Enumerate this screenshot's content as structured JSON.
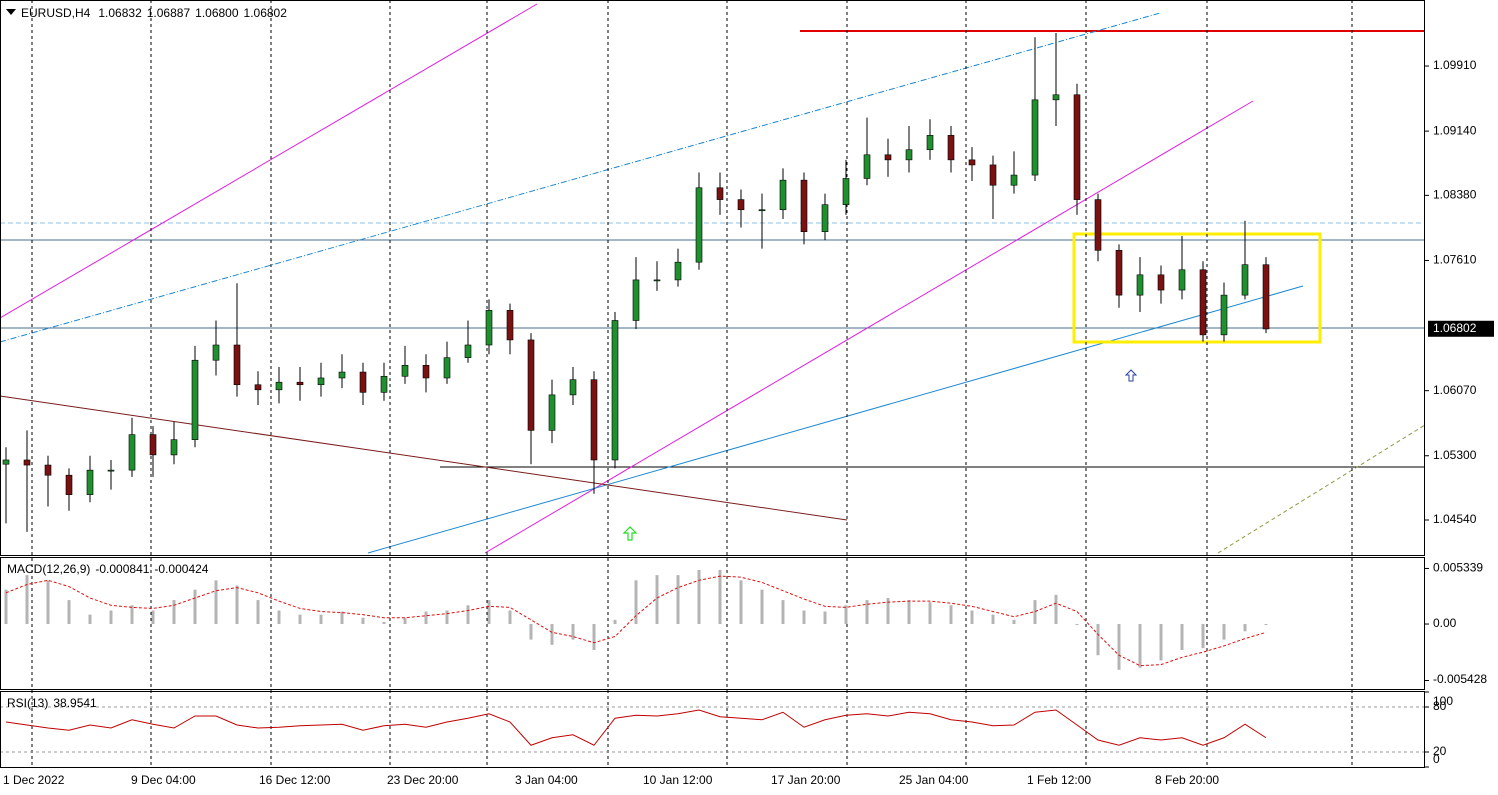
{
  "header": {
    "symbol": "EURUSD,H4",
    "quote": [
      "1.06832",
      "1.06887",
      "1.06800",
      "1.06802"
    ]
  },
  "chart_data": [
    {
      "type": "candlestick",
      "up_color": "#1f8f2f",
      "down_color": "#7a1212",
      "ylim": [
        1.04126,
        1.10691
      ],
      "yticks": [
        {
          "value": 1.0991,
          "label": "1.09910"
        },
        {
          "value": 1.0914,
          "label": "1.09140"
        },
        {
          "value": 1.0838,
          "label": "1.08380"
        },
        {
          "value": 1.0761,
          "label": "1.07610"
        },
        {
          "value": 1.0607,
          "label": "1.06070"
        },
        {
          "value": 1.053,
          "label": "1.05300"
        },
        {
          "value": 1.0454,
          "label": "1.04540"
        }
      ],
      "last_price": 1.06802,
      "time_labels": [
        "1 Dec 2022",
        "9 Dec 04:00",
        "16 Dec 12:00",
        "23 Dec 20:00",
        "3 Jan 04:00",
        "10 Jan 12:00",
        "17 Jan 20:00",
        "25 Jan 04:00",
        "1 Feb 12:00",
        "8 Feb 20:00"
      ],
      "open": [
        1.052,
        1.0525,
        1.0519,
        1.0507,
        1.0484,
        1.0513,
        1.0513,
        1.0555,
        1.0531,
        1.0549,
        1.0643,
        1.0661,
        1.0614,
        1.0608,
        1.0617,
        1.0614,
        1.0622,
        1.0629,
        1.0605,
        1.0624,
        1.0637,
        1.0622,
        1.0646,
        1.0661,
        1.0702,
        1.0667,
        1.056,
        1.0602,
        1.062,
        1.0525,
        1.069,
        1.0738,
        1.0738,
        1.0759,
        1.0847,
        1.0833,
        1.0821,
        1.0821,
        1.0856,
        1.0795,
        1.0827,
        1.0858,
        1.0886,
        1.088,
        1.0892,
        1.0909,
        1.088,
        1.0874,
        1.085,
        1.0862,
        1.0951,
        1.0957,
        1.0833,
        1.0773,
        1.072,
        1.0744,
        1.0726,
        1.075,
        1.0673,
        1.072,
        1.0756
      ],
      "high": [
        1.054,
        1.056,
        1.053,
        1.0515,
        1.053,
        1.0525,
        1.0575,
        1.0565,
        1.057,
        1.066,
        1.069,
        1.0734,
        1.063,
        1.0635,
        1.0635,
        1.064,
        1.065,
        1.064,
        1.064,
        1.066,
        1.065,
        1.0665,
        1.069,
        1.0715,
        1.071,
        1.0675,
        1.062,
        1.0635,
        1.063,
        1.07,
        1.0765,
        1.076,
        1.0775,
        1.0865,
        1.0865,
        1.0845,
        1.084,
        1.087,
        1.0865,
        1.084,
        1.088,
        1.093,
        1.0905,
        1.092,
        1.0928,
        1.092,
        1.0895,
        1.0885,
        1.089,
        1.1025,
        1.103,
        1.097,
        1.084,
        1.078,
        1.0765,
        1.0755,
        1.079,
        1.076,
        1.0735,
        1.0808,
        1.0765
      ],
      "low": [
        1.045,
        1.044,
        1.047,
        1.0465,
        1.0475,
        1.049,
        1.0505,
        1.0505,
        1.052,
        1.054,
        1.0625,
        1.06,
        1.059,
        1.0592,
        1.0595,
        1.06,
        1.061,
        1.059,
        1.0595,
        1.0615,
        1.0605,
        1.0615,
        1.064,
        1.065,
        1.065,
        1.052,
        1.0545,
        1.059,
        1.0485,
        1.0515,
        1.068,
        1.0725,
        1.073,
        1.075,
        1.0815,
        1.08,
        1.0775,
        1.081,
        1.078,
        1.0785,
        1.0815,
        1.085,
        1.086,
        1.0865,
        1.088,
        1.0865,
        1.0855,
        1.081,
        1.084,
        1.0855,
        1.092,
        1.0815,
        1.076,
        1.0705,
        1.07,
        1.071,
        1.0715,
        1.0665,
        1.0665,
        1.0715,
        1.0675
      ],
      "close": [
        1.0525,
        1.0519,
        1.0507,
        1.0484,
        1.0513,
        1.0513,
        1.0555,
        1.0531,
        1.0549,
        1.0643,
        1.0661,
        1.0614,
        1.0608,
        1.0617,
        1.0614,
        1.0622,
        1.0629,
        1.0605,
        1.0624,
        1.0637,
        1.0622,
        1.0646,
        1.0661,
        1.0702,
        1.0667,
        1.056,
        1.0602,
        1.062,
        1.0525,
        1.069,
        1.0738,
        1.0738,
        1.0759,
        1.0847,
        1.0833,
        1.0821,
        1.0821,
        1.0856,
        1.0795,
        1.0827,
        1.0858,
        1.0886,
        1.088,
        1.0892,
        1.0909,
        1.088,
        1.0874,
        1.085,
        1.0862,
        1.0951,
        1.0957,
        1.0833,
        1.0773,
        1.072,
        1.0744,
        1.0726,
        1.075,
        1.0673,
        1.072,
        1.0756,
        1.068
      ]
    },
    {
      "type": "macd",
      "title": "MACD(12,26,9)",
      "readings": [
        -0.000841,
        -0.000424
      ],
      "ylim": [
        -0.00634,
        0.00644
      ],
      "yticks": [
        0.005339,
        {
          "value": 0,
          "label": "0.00"
        },
        -0.005428
      ],
      "histogram": {
        "color": "#b4b4b4",
        "values": [
          0.0033,
          0.0047,
          0.0042,
          0.0023,
          0.0009,
          0.0013,
          0.0018,
          0.0013,
          0.0023,
          0.0033,
          0.0042,
          0.0037,
          0.0023,
          0.0013,
          0.0009,
          0.0009,
          0.0012,
          0.0006,
          0.0002,
          0.0006,
          0.0012,
          0.0013,
          0.0018,
          0.0023,
          0.0013,
          -0.0015,
          -0.002,
          -0.0015,
          -0.0025,
          0.0004,
          0.0042,
          0.0047,
          0.0047,
          0.0052,
          0.0052,
          0.0042,
          0.0033,
          0.0023,
          0.0013,
          0.0012,
          0.0018,
          0.0023,
          0.0025,
          0.0023,
          0.0021,
          0.0018,
          0.0013,
          0.0009,
          0.0004,
          0.0023,
          0.0028,
          -0.0001,
          -0.003,
          -0.0044,
          -0.0042,
          -0.0035,
          -0.0025,
          -0.0023,
          -0.0015,
          -0.0007,
          -0.0001
        ]
      },
      "signal": {
        "color": "#e01010",
        "values": [
          0.003,
          0.0038,
          0.0042,
          0.0036,
          0.0025,
          0.0018,
          0.0016,
          0.0015,
          0.0018,
          0.0025,
          0.0032,
          0.0035,
          0.003,
          0.0022,
          0.0015,
          0.0012,
          0.0011,
          0.0009,
          0.0006,
          0.0006,
          0.0008,
          0.001,
          0.0013,
          0.0017,
          0.0016,
          0.0004,
          -0.0008,
          -0.0012,
          -0.0018,
          -0.0012,
          0.0008,
          0.0025,
          0.0035,
          0.0042,
          0.0046,
          0.0045,
          0.004,
          0.0032,
          0.0024,
          0.0017,
          0.0016,
          0.0019,
          0.0021,
          0.0022,
          0.0022,
          0.002,
          0.0017,
          0.0012,
          0.0007,
          0.0012,
          0.002,
          0.0012,
          -0.001,
          -0.003,
          -0.004,
          -0.0039,
          -0.0032,
          -0.0027,
          -0.0021,
          -0.0014,
          -0.0008
        ]
      }
    },
    {
      "type": "line",
      "title": "RSI(13)",
      "readings": [
        38.9541
      ],
      "color": "#c00000",
      "ylim": [
        0,
        100
      ],
      "yticks": [
        100,
        80,
        20,
        0
      ],
      "levels": [
        80,
        20
      ],
      "values": [
        60,
        56,
        52,
        49,
        56,
        52,
        63,
        57,
        52,
        68,
        68,
        56,
        52,
        53,
        55,
        56,
        57,
        49,
        55,
        57,
        53,
        60,
        65,
        71,
        60,
        29,
        39,
        43,
        29,
        65,
        69,
        68,
        71,
        76,
        67,
        65,
        63,
        73,
        53,
        63,
        69,
        71,
        68,
        73,
        71,
        63,
        60,
        55,
        56,
        73,
        76,
        56,
        36,
        29,
        39,
        36,
        39,
        29,
        39,
        57,
        39
      ]
    }
  ]
}
